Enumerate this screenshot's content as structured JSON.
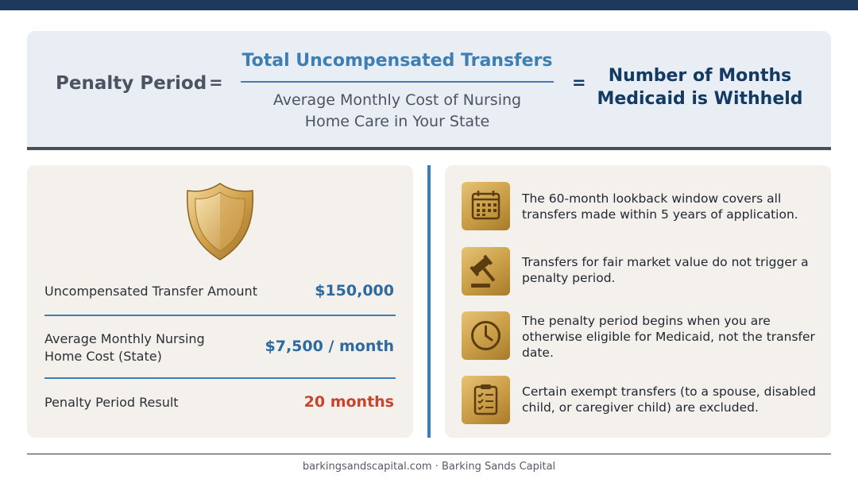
{
  "formula": {
    "lhs": "Penalty Period",
    "eq1": "=",
    "numerator": "Total Uncompensated Transfers",
    "denominator_line1": "Average Monthly Cost of Nursing",
    "denominator_line2": "Home Care in Your State",
    "eq2": "=",
    "rhs_line1": "Number of Months",
    "rhs_line2": "Medicaid is Withheld"
  },
  "calculation": {
    "icon": "shield-icon",
    "rows": [
      {
        "label_line1": "Uncompensated Transfer Amount",
        "label_line2": "",
        "value": "$150,000"
      },
      {
        "label_line1": "Average Monthly Nursing",
        "label_line2": "Home Cost (State)",
        "value": "$7,500 / month"
      },
      {
        "label_line1": "Penalty Period Result",
        "label_line2": "",
        "value": "20 months"
      }
    ]
  },
  "notes": [
    {
      "icon": "calendar-icon",
      "text": "The 60-month lookback window covers all transfers made within 5 years of application."
    },
    {
      "icon": "gavel-icon",
      "text": "Transfers for fair market value do not trigger a penalty period."
    },
    {
      "icon": "clock-icon",
      "text": "The penalty period begins when you are otherwise eligible for Medicaid, not the transfer date."
    },
    {
      "icon": "clipboard-checklist-icon",
      "text": "Certain exempt transfers (to a spouse, disabled child, or caregiver child) are excluded."
    }
  ],
  "footer": "barkingsandscapital.com · Barking Sands Capital",
  "colors": {
    "top_bar": "#1d3a5c",
    "accent_blue": "#3d7fb5",
    "result_red": "#c8442d",
    "gold": "#c99c45"
  }
}
